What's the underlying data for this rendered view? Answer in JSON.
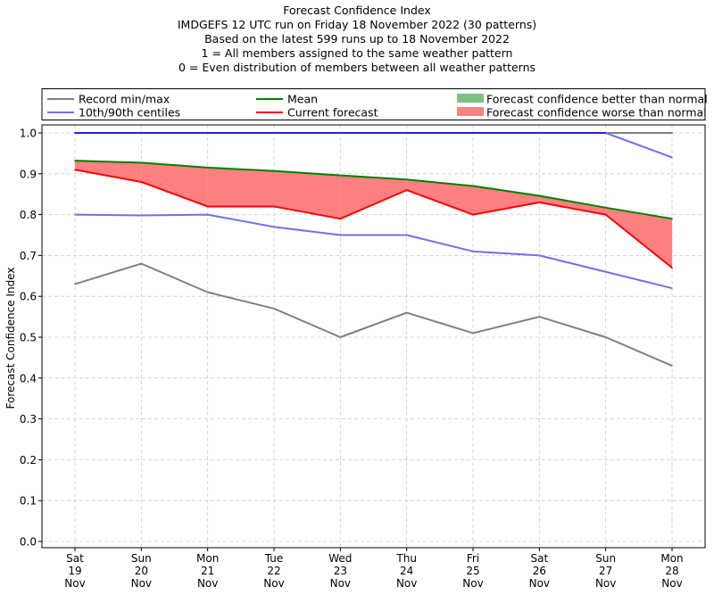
{
  "titles": {
    "line1": "Forecast Confidence Index",
    "line2": "IMDGEFS 12 UTC run on Friday 18 November 2022 (30 patterns)",
    "line3": "Based on the latest 599 runs up to 18 November 2022",
    "line4": "1 = All members assigned to the same weather pattern",
    "line5": "0 = Even distribution of members between all weather patterns"
  },
  "legend": {
    "record": "Record min/max",
    "centiles": "10th/90th centiles",
    "mean": "Mean",
    "current": "Current forecast",
    "better": "Forecast confidence better than normal",
    "worse": "Forecast confidence worse than normal"
  },
  "colors": {
    "record": "#808080",
    "centiles": "#7070f0",
    "record_max": "#2020e0",
    "mean": "#008000",
    "current": "#ff0000",
    "worse_fill": "#ff8080",
    "better_fill": "#80c080",
    "grid": "#cccccc"
  },
  "chart_data": {
    "type": "line",
    "title": "Forecast Confidence Index",
    "ylabel": "Forecast Confidence Index",
    "ylim": [
      0,
      1.0
    ],
    "yticks": [
      "0.0",
      "0.1",
      "0.2",
      "0.3",
      "0.4",
      "0.5",
      "0.6",
      "0.7",
      "0.8",
      "0.9",
      "1.0"
    ],
    "grid": true,
    "legend_position": "top",
    "categories": [
      [
        "Sat",
        "19",
        "Nov"
      ],
      [
        "Sun",
        "20",
        "Nov"
      ],
      [
        "Mon",
        "21",
        "Nov"
      ],
      [
        "Tue",
        "22",
        "Nov"
      ],
      [
        "Wed",
        "23",
        "Nov"
      ],
      [
        "Thu",
        "24",
        "Nov"
      ],
      [
        "Fri",
        "25",
        "Nov"
      ],
      [
        "Sat",
        "26",
        "Nov"
      ],
      [
        "Sun",
        "27",
        "Nov"
      ],
      [
        "Mon",
        "28",
        "Nov"
      ]
    ],
    "series": [
      {
        "name": "Record min/max",
        "key": "record_max",
        "values": [
          1.0,
          1.0,
          1.0,
          1.0,
          1.0,
          1.0,
          1.0,
          1.0,
          1.0,
          1.0
        ]
      },
      {
        "name": "Record min/max",
        "key": "record_min",
        "values": [
          0.63,
          0.68,
          0.61,
          0.57,
          0.5,
          0.56,
          0.51,
          0.55,
          0.5,
          0.43
        ]
      },
      {
        "name": "10th/90th centiles",
        "key": "p90",
        "values": [
          1.0,
          1.0,
          1.0,
          1.0,
          1.0,
          1.0,
          1.0,
          1.0,
          1.0,
          0.94
        ]
      },
      {
        "name": "10th/90th centiles",
        "key": "p10",
        "values": [
          0.8,
          0.798,
          0.8,
          0.77,
          0.75,
          0.75,
          0.71,
          0.7,
          0.66,
          0.62
        ]
      },
      {
        "name": "Mean",
        "key": "mean",
        "values": [
          0.932,
          0.927,
          0.915,
          0.907,
          0.896,
          0.886,
          0.87,
          0.846,
          0.817,
          0.79
        ]
      },
      {
        "name": "Current forecast",
        "key": "current",
        "values": [
          0.91,
          0.88,
          0.82,
          0.82,
          0.79,
          0.86,
          0.8,
          0.83,
          0.8,
          0.67
        ]
      }
    ]
  }
}
